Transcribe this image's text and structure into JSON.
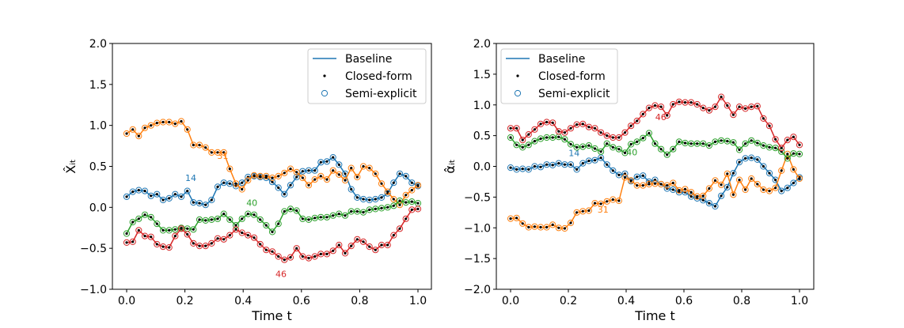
{
  "colors": {
    "c14": "#1f77b4",
    "c31": "#ff7f0e",
    "c40": "#2ca02c",
    "c46": "#d62728"
  },
  "legend": {
    "baseline": "Baseline",
    "closed_form": "Closed-form",
    "semi_explicit": "Semi-explicit"
  },
  "chart_data": [
    {
      "type": "line",
      "xlabel": "Time t",
      "ylabel": "X̂ᵢₜ",
      "xlim": [
        0.0,
        1.0
      ],
      "ylim": [
        -1.0,
        2.0
      ],
      "xticks": [
        "0.0",
        "0.2",
        "0.4",
        "0.6",
        "0.8",
        "1.0"
      ],
      "yticks": [
        "−1.0",
        "−0.5",
        "0.0",
        "0.5",
        "1.0",
        "1.5",
        "2.0"
      ],
      "legend_position": "top-right",
      "series": [
        {
          "name": "14",
          "color": "#1f77b4",
          "label_at": [
            0.22,
            0.32
          ],
          "values": [
            0.13,
            0.19,
            0.21,
            0.2,
            0.14,
            0.16,
            0.09,
            0.11,
            0.16,
            0.13,
            0.2,
            0.06,
            0.05,
            0.03,
            0.09,
            0.25,
            0.3,
            0.29,
            0.26,
            0.3,
            0.37,
            0.38,
            0.37,
            0.36,
            0.31,
            0.24,
            0.16,
            0.27,
            0.37,
            0.44,
            0.45,
            0.45,
            0.55,
            0.56,
            0.61,
            0.52,
            0.41,
            0.22,
            0.12,
            0.1,
            0.09,
            0.1,
            0.12,
            0.17,
            0.3,
            0.41,
            0.38,
            0.3,
            0.26
          ]
        },
        {
          "name": "31",
          "color": "#ff7f0e",
          "label_at": [
            0.33,
            0.59
          ],
          "values": [
            0.9,
            0.95,
            0.87,
            0.97,
            1.0,
            1.03,
            1.04,
            1.04,
            1.02,
            1.05,
            0.95,
            0.76,
            0.76,
            0.73,
            0.67,
            0.67,
            0.67,
            0.47,
            0.29,
            0.22,
            0.33,
            0.39,
            0.38,
            0.38,
            0.36,
            0.38,
            0.42,
            0.47,
            0.43,
            0.36,
            0.27,
            0.34,
            0.38,
            0.34,
            0.45,
            0.4,
            0.33,
            0.48,
            0.37,
            0.5,
            0.48,
            0.41,
            0.29,
            0.19,
            0.1,
            0.03,
            0.15,
            0.21,
            0.27
          ]
        },
        {
          "name": "40",
          "color": "#2ca02c",
          "label_at": [
            0.43,
            0.02
          ],
          "values": [
            -0.32,
            -0.18,
            -0.14,
            -0.09,
            -0.12,
            -0.2,
            -0.28,
            -0.28,
            -0.27,
            -0.25,
            -0.26,
            -0.27,
            -0.15,
            -0.16,
            -0.15,
            -0.14,
            -0.08,
            -0.15,
            -0.22,
            -0.14,
            -0.08,
            -0.09,
            -0.15,
            -0.22,
            -0.3,
            -0.2,
            -0.05,
            -0.02,
            -0.04,
            -0.14,
            -0.15,
            -0.13,
            -0.12,
            -0.12,
            -0.1,
            -0.08,
            -0.1,
            -0.05,
            -0.05,
            -0.06,
            -0.03,
            -0.02,
            -0.01,
            0.0,
            0.02,
            0.08,
            0.06,
            0.07,
            0.05
          ]
        },
        {
          "name": "46",
          "color": "#d62728",
          "label_at": [
            0.53,
            -0.85
          ],
          "values": [
            -0.43,
            -0.42,
            -0.28,
            -0.35,
            -0.36,
            -0.45,
            -0.48,
            -0.49,
            -0.35,
            -0.26,
            -0.33,
            -0.44,
            -0.47,
            -0.47,
            -0.44,
            -0.38,
            -0.39,
            -0.34,
            -0.27,
            -0.31,
            -0.34,
            -0.37,
            -0.45,
            -0.52,
            -0.54,
            -0.6,
            -0.64,
            -0.61,
            -0.5,
            -0.6,
            -0.62,
            -0.6,
            -0.57,
            -0.57,
            -0.53,
            -0.46,
            -0.56,
            -0.47,
            -0.39,
            -0.42,
            -0.48,
            -0.52,
            -0.46,
            -0.46,
            -0.34,
            -0.26,
            -0.14,
            -0.03,
            -0.02
          ]
        }
      ]
    },
    {
      "type": "line",
      "xlabel": "Time t",
      "ylabel": "α̂ᵢₜ",
      "xlim": [
        0.0,
        1.0
      ],
      "ylim": [
        -2.0,
        2.0
      ],
      "xticks": [
        "0.0",
        "0.2",
        "0.4",
        "0.6",
        "0.8",
        "1.0"
      ],
      "yticks": [
        "−2.0",
        "−1.5",
        "−1.0",
        "−0.5",
        "0.0",
        "0.5",
        "1.0",
        "1.5",
        "2.0"
      ],
      "legend_position": "top-left",
      "series": [
        {
          "name": "14",
          "color": "#1f77b4",
          "label_at": [
            0.22,
            0.17
          ],
          "values": [
            -0.02,
            -0.05,
            -0.04,
            -0.05,
            0.0,
            -0.01,
            0.03,
            0.02,
            0.05,
            0.03,
            0.03,
            -0.05,
            0.05,
            0.09,
            0.1,
            0.14,
            0.03,
            -0.07,
            -0.14,
            -0.12,
            -0.24,
            -0.17,
            -0.15,
            -0.25,
            -0.22,
            -0.29,
            -0.36,
            -0.38,
            -0.42,
            -0.42,
            -0.49,
            -0.52,
            -0.55,
            -0.6,
            -0.65,
            -0.48,
            -0.34,
            -0.11,
            0.07,
            0.13,
            0.14,
            0.11,
            0.0,
            -0.11,
            -0.22,
            -0.4,
            -0.35,
            -0.27,
            -0.18
          ]
        },
        {
          "name": "31",
          "color": "#ff7f0e",
          "label_at": [
            0.32,
            -0.75
          ],
          "values": [
            -0.85,
            -0.84,
            -0.93,
            -0.99,
            -0.98,
            -0.99,
            -0.99,
            -0.95,
            -1.0,
            -1.01,
            -0.92,
            -0.75,
            -0.73,
            -0.72,
            -0.6,
            -0.61,
            -0.57,
            -0.54,
            -0.56,
            -0.18,
            -0.23,
            -0.31,
            -0.31,
            -0.29,
            -0.28,
            -0.29,
            -0.31,
            -0.27,
            -0.39,
            -0.37,
            -0.42,
            -0.49,
            -0.48,
            -0.36,
            -0.23,
            -0.3,
            -0.12,
            -0.46,
            -0.22,
            -0.38,
            -0.2,
            -0.29,
            -0.38,
            -0.4,
            -0.35,
            -0.07,
            0.2,
            -0.05,
            -0.2
          ]
        },
        {
          "name": "40",
          "color": "#2ca02c",
          "label_at": [
            0.42,
            0.18
          ],
          "values": [
            0.47,
            0.35,
            0.31,
            0.35,
            0.41,
            0.45,
            0.47,
            0.47,
            0.48,
            0.44,
            0.36,
            0.31,
            0.32,
            0.34,
            0.29,
            0.24,
            0.37,
            0.31,
            0.28,
            0.22,
            0.36,
            0.4,
            0.46,
            0.54,
            0.37,
            0.28,
            0.19,
            0.28,
            0.4,
            0.38,
            0.37,
            0.37,
            0.37,
            0.34,
            0.4,
            0.42,
            0.41,
            0.39,
            0.27,
            0.37,
            0.42,
            0.38,
            0.34,
            0.31,
            0.3,
            0.24,
            0.13,
            0.21,
            0.2
          ]
        },
        {
          "name": "46",
          "color": "#d62728",
          "label_at": [
            0.52,
            0.75
          ],
          "values": [
            0.62,
            0.62,
            0.43,
            0.52,
            0.6,
            0.69,
            0.72,
            0.71,
            0.57,
            0.55,
            0.62,
            0.68,
            0.69,
            0.64,
            0.62,
            0.55,
            0.5,
            0.47,
            0.47,
            0.55,
            0.66,
            0.74,
            0.85,
            0.95,
            0.99,
            0.97,
            0.83,
            1.01,
            1.05,
            1.04,
            1.04,
            1.01,
            0.95,
            0.91,
            0.97,
            1.13,
            0.99,
            0.84,
            0.97,
            0.94,
            0.97,
            0.98,
            0.78,
            0.66,
            0.44,
            0.3,
            0.43,
            0.48,
            0.35
          ]
        }
      ]
    }
  ]
}
